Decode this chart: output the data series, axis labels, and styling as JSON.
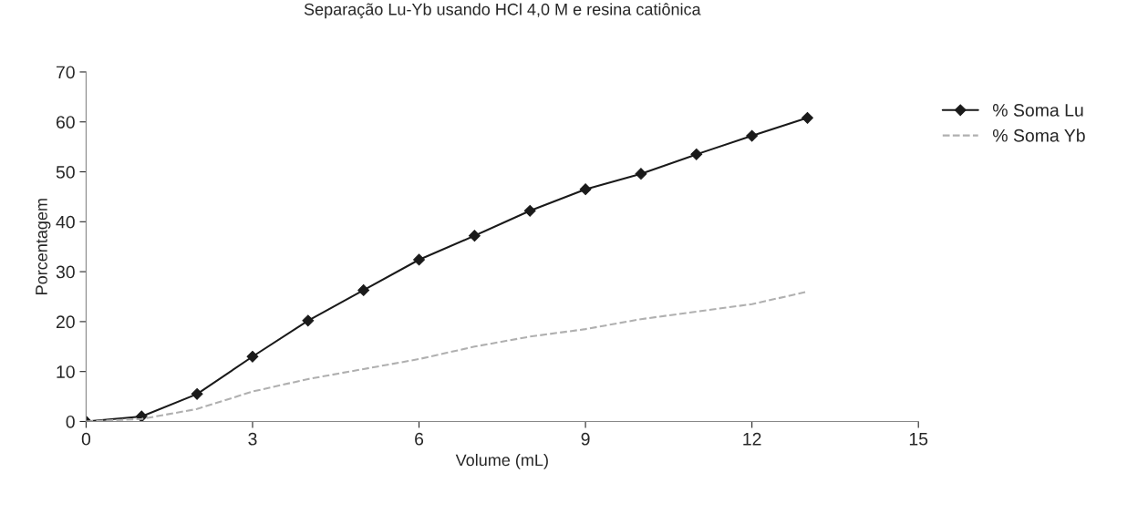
{
  "chart_data": {
    "type": "line",
    "title": "Separação Lu-Yb usando HCl 4,0 M e resina catiônica",
    "xlabel": "Volume (mL)",
    "ylabel": "Porcentagem",
    "x": [
      0,
      1,
      2,
      3,
      4,
      5,
      6,
      7,
      8,
      9,
      10,
      11,
      12,
      13
    ],
    "series": [
      {
        "name": "% Soma Lu",
        "color": "#1a1a1a",
        "marker": "diamond",
        "line_style": "solid",
        "values": [
          0,
          1,
          5.5,
          13,
          20.2,
          26.3,
          32.4,
          37.2,
          42.2,
          46.5,
          49.6,
          53.5,
          57.2,
          60.8
        ]
      },
      {
        "name": "% Soma Yb",
        "color": "#b0b0b0",
        "marker": "none",
        "line_style": "dashed",
        "values": [
          0,
          0.5,
          2.5,
          6,
          8.5,
          10.5,
          12.5,
          15,
          17,
          18.5,
          20.5,
          22,
          23.5,
          26
        ]
      }
    ],
    "xlim": [
      0,
      15
    ],
    "xticks": [
      0,
      3,
      6,
      9,
      12,
      15
    ],
    "ylim": [
      0,
      70
    ],
    "yticks": [
      0,
      10,
      20,
      30,
      40,
      50,
      60,
      70
    ],
    "grid": false,
    "legend": "right"
  }
}
